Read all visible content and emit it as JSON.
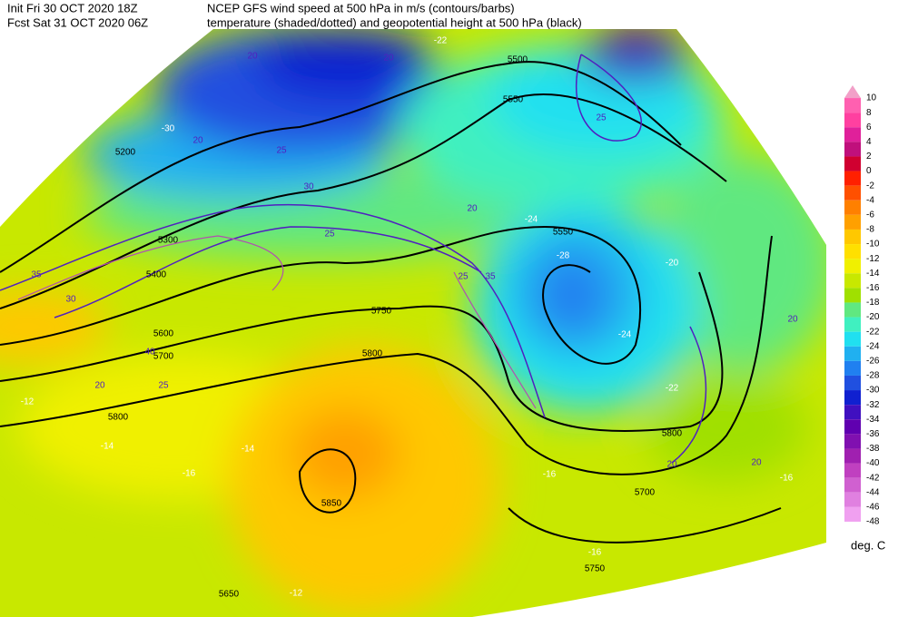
{
  "header": {
    "init": "Init  Fri 30 OCT 2020 18Z",
    "fcst": "Fcst Sat 31 OCT 2020 06Z",
    "title": "NCEP GFS wind speed at 500 hPa in m/s (contours/barbs)",
    "subtitle": "temperature (shaded/dotted) and geopotential height at 500 hPa (black)"
  },
  "colorbar": {
    "levels": [
      10,
      8,
      6,
      4,
      2,
      0,
      -2,
      -4,
      -6,
      -8,
      -10,
      -12,
      -14,
      -16,
      -18,
      -20,
      -22,
      -24,
      -26,
      -28,
      -30,
      -32,
      -34,
      -36,
      -38,
      -40,
      -42,
      -44,
      -46,
      -48
    ],
    "colors": [
      "#f2a0c8",
      "#ff60b0",
      "#ff40a0",
      "#e0209a",
      "#c0107c",
      "#d00030",
      "#ff2000",
      "#ff5000",
      "#ff8000",
      "#ffa000",
      "#ffc800",
      "#ffe000",
      "#f0f000",
      "#c8e800",
      "#a0e000",
      "#60e880",
      "#40f0c0",
      "#20e0f0",
      "#20b0f0",
      "#2080f0",
      "#2050e0",
      "#1020d0",
      "#4010c0",
      "#6000b0",
      "#8010b0",
      "#a020b0",
      "#c040c0",
      "#d060d0",
      "#e080e0",
      "#f0a0f0"
    ],
    "unit": "deg. C"
  },
  "map": {
    "labels": [
      "5200",
      "5300",
      "5400",
      "5500",
      "5550",
      "5550",
      "5600",
      "5700",
      "5750",
      "5800",
      "5800",
      "5850",
      "5650",
      "5700",
      "5750",
      "5800",
      "-12",
      "-14",
      "-16",
      "-14",
      "-16",
      "-16",
      "-16",
      "-20",
      "-22",
      "-24",
      "-28",
      "-30",
      "-22",
      "-24",
      "-12",
      "20",
      "20",
      "25",
      "20",
      "25",
      "30",
      "35",
      "30",
      "40",
      "20",
      "25",
      "35",
      "25",
      "20",
      "20",
      "20",
      "25",
      "20"
    ]
  }
}
